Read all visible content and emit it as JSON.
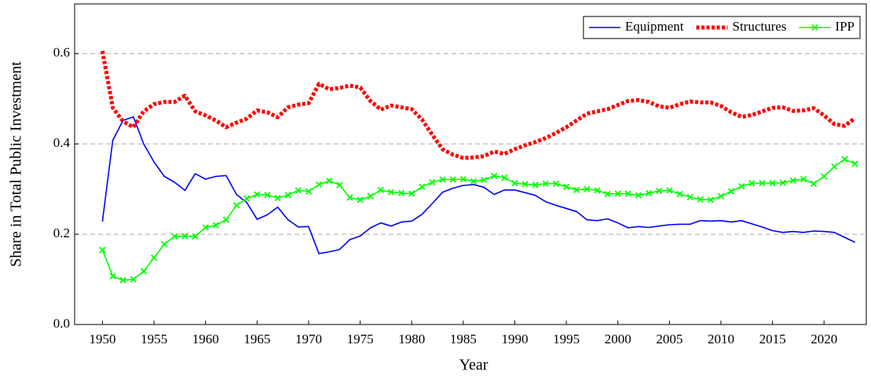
{
  "chart_data": {
    "type": "line",
    "x_label": "Year",
    "y_label": "Share in Total Public Investment",
    "x": [
      1950,
      1951,
      1952,
      1953,
      1954,
      1955,
      1956,
      1957,
      1958,
      1959,
      1960,
      1961,
      1962,
      1963,
      1964,
      1965,
      1966,
      1967,
      1968,
      1969,
      1970,
      1971,
      1972,
      1973,
      1974,
      1975,
      1976,
      1977,
      1978,
      1979,
      1980,
      1981,
      1982,
      1983,
      1984,
      1985,
      1986,
      1987,
      1988,
      1989,
      1990,
      1991,
      1992,
      1993,
      1994,
      1995,
      1996,
      1997,
      1998,
      1999,
      2000,
      2001,
      2002,
      2003,
      2004,
      2005,
      2006,
      2007,
      2008,
      2009,
      2010,
      2011,
      2012,
      2013,
      2014,
      2015,
      2016,
      2017,
      2018,
      2019,
      2020,
      2021,
      2022,
      2023
    ],
    "series": [
      {
        "name": "Equipment",
        "color": "#0000ff",
        "style": "solid",
        "values": [
          0.228,
          0.408,
          0.452,
          0.46,
          0.4,
          0.36,
          0.328,
          0.315,
          0.297,
          0.334,
          0.322,
          0.328,
          0.33,
          0.288,
          0.27,
          0.233,
          0.243,
          0.26,
          0.232,
          0.216,
          0.217,
          0.157,
          0.161,
          0.166,
          0.188,
          0.196,
          0.214,
          0.225,
          0.218,
          0.227,
          0.229,
          0.244,
          0.268,
          0.293,
          0.302,
          0.308,
          0.31,
          0.304,
          0.288,
          0.298,
          0.298,
          0.292,
          0.286,
          0.272,
          0.264,
          0.257,
          0.25,
          0.232,
          0.23,
          0.234,
          0.225,
          0.214,
          0.217,
          0.215,
          0.218,
          0.221,
          0.222,
          0.222,
          0.23,
          0.229,
          0.23,
          0.227,
          0.23,
          0.223,
          0.216,
          0.208,
          0.204,
          0.206,
          0.204,
          0.207,
          0.206,
          0.204,
          0.193,
          0.182
        ]
      },
      {
        "name": "Structures",
        "color": "#ff0000",
        "style": "dotted",
        "values": [
          0.606,
          0.48,
          0.45,
          0.437,
          0.472,
          0.488,
          0.493,
          0.493,
          0.507,
          0.472,
          0.463,
          0.452,
          0.437,
          0.447,
          0.456,
          0.474,
          0.47,
          0.459,
          0.481,
          0.487,
          0.49,
          0.533,
          0.521,
          0.524,
          0.529,
          0.525,
          0.495,
          0.476,
          0.485,
          0.481,
          0.477,
          0.454,
          0.42,
          0.388,
          0.376,
          0.369,
          0.37,
          0.373,
          0.383,
          0.378,
          0.388,
          0.397,
          0.404,
          0.413,
          0.424,
          0.437,
          0.452,
          0.467,
          0.472,
          0.477,
          0.486,
          0.495,
          0.497,
          0.493,
          0.483,
          0.48,
          0.488,
          0.494,
          0.492,
          0.492,
          0.484,
          0.47,
          0.46,
          0.464,
          0.472,
          0.48,
          0.481,
          0.473,
          0.474,
          0.479,
          0.463,
          0.444,
          0.44,
          0.457
        ]
      },
      {
        "name": "IPP",
        "color": "#00ff00",
        "style": "solid",
        "marker": "x",
        "values": [
          0.165,
          0.107,
          0.098,
          0.1,
          0.118,
          0.148,
          0.178,
          0.195,
          0.196,
          0.195,
          0.215,
          0.22,
          0.232,
          0.264,
          0.279,
          0.288,
          0.287,
          0.28,
          0.287,
          0.297,
          0.295,
          0.31,
          0.318,
          0.309,
          0.281,
          0.276,
          0.284,
          0.298,
          0.293,
          0.291,
          0.29,
          0.305,
          0.315,
          0.321,
          0.321,
          0.322,
          0.317,
          0.32,
          0.329,
          0.325,
          0.313,
          0.311,
          0.309,
          0.312,
          0.312,
          0.305,
          0.298,
          0.3,
          0.297,
          0.289,
          0.29,
          0.29,
          0.286,
          0.291,
          0.296,
          0.297,
          0.289,
          0.282,
          0.277,
          0.276,
          0.284,
          0.295,
          0.306,
          0.313,
          0.313,
          0.313,
          0.314,
          0.319,
          0.322,
          0.312,
          0.328,
          0.35,
          0.366,
          0.356
        ]
      }
    ],
    "xlim": [
      1947.3,
      2024.1
    ],
    "xticks": [
      1950,
      1955,
      1960,
      1965,
      1970,
      1975,
      1980,
      1985,
      1990,
      1995,
      2000,
      2005,
      2010,
      2015,
      2020
    ],
    "ylim": [
      0,
      0.71
    ],
    "yticks": [
      {
        "value": 0,
        "label": "0.0"
      },
      0.2,
      0.4,
      0.6
    ],
    "grid": true,
    "legend_position": "upper-right"
  }
}
